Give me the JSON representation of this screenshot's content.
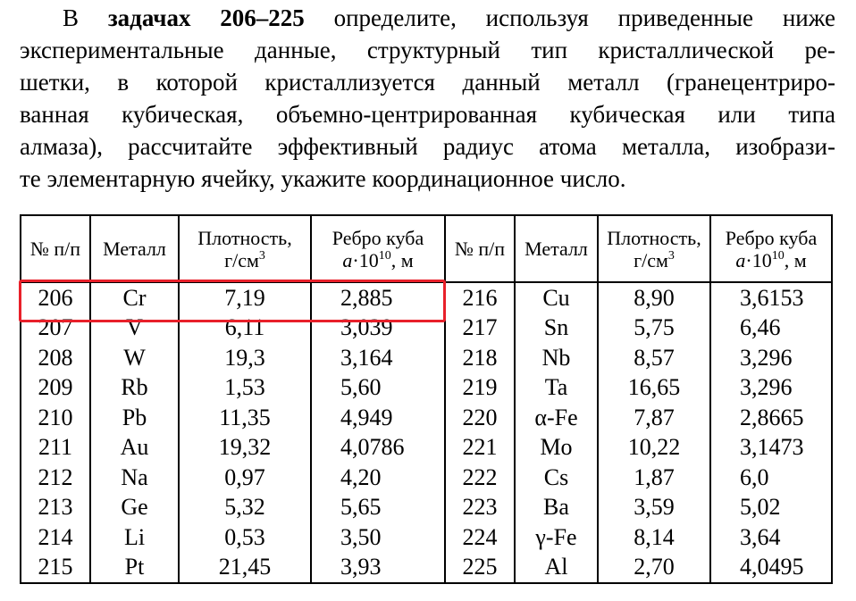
{
  "intro": {
    "lead": "В",
    "bold": "задачах 206–225",
    "lines": [
      "определите, используя приведенные ниже",
      "экспериментальные данные, структурный тип кристаллической ре-",
      "шетки, в которой кристаллизуется данный металл (гранецентриро-",
      "ванная кубическая, объемно-центрированная кубическая или типа",
      "алмаза), рассчитайте эффективный радиус атома металла, изобрази-",
      "те элементарную ячейку, укажите координационное число."
    ]
  },
  "table": {
    "header": [
      {
        "text": "№ п/п"
      },
      {
        "text": "Металл"
      },
      {
        "text": "Плотность,",
        "unit": "г/см",
        "exp": "3"
      },
      {
        "text": "Ребро куба",
        "symbol": "a",
        "factor": "·10",
        "exp": "10",
        "unit": ", м"
      },
      {
        "text": "№ п/п"
      },
      {
        "text": "Металл"
      },
      {
        "text": "Плотность,",
        "unit": "г/см",
        "exp": "3"
      },
      {
        "text": "Ребро куба",
        "symbol": "a",
        "factor": "·10",
        "exp": "10",
        "unit": ", м"
      }
    ],
    "rows": [
      [
        "206",
        "Cr",
        "7,19",
        "2,885",
        "216",
        "Cu",
        "8,90",
        "3,6153"
      ],
      [
        "207",
        "V",
        "6,11",
        "3,039",
        "217",
        "Sn",
        "5,75",
        "6,46"
      ],
      [
        "208",
        "W",
        "19,3",
        "3,164",
        "218",
        "Nb",
        "8,57",
        "3,296"
      ],
      [
        "209",
        "Rb",
        "1,53",
        "5,60",
        "219",
        "Ta",
        "16,65",
        "3,296"
      ],
      [
        "210",
        "Pb",
        "11,35",
        "4,949",
        "220",
        "α-Fe",
        "7,87",
        "2,8665"
      ],
      [
        "211",
        "Au",
        "19,32",
        "4,0786",
        "221",
        "Mo",
        "10,22",
        "3,1473"
      ],
      [
        "212",
        "Na",
        "0,97",
        "4,20",
        "222",
        "Cs",
        "1,87",
        "6,0"
      ],
      [
        "213",
        "Ge",
        "5,32",
        "5,65",
        "223",
        "Ba",
        "3,59",
        "5,02"
      ],
      [
        "214",
        "Li",
        "0,53",
        "3,50",
        "224",
        "γ-Fe",
        "8,14",
        "3,64"
      ],
      [
        "215",
        "Pt",
        "21,45",
        "3,93",
        "225",
        "Al",
        "2,70",
        "4,0495"
      ]
    ]
  }
}
